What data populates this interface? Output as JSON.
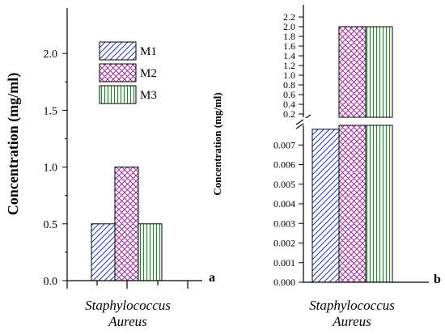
{
  "chart_data": [
    {
      "type": "bar",
      "panel_label": "a",
      "ylabel": "Concentration (mg/ml)",
      "category": [
        "Staphylococcus",
        "Aureus"
      ],
      "ylim": [
        0,
        2.4
      ],
      "yticks": [
        "0.0",
        "0.5",
        "1.0",
        "1.5",
        "2.0"
      ],
      "series": [
        {
          "name": "M1",
          "value": 0.5,
          "color": "#1f35c6",
          "pattern": "diagonal"
        },
        {
          "name": "M2",
          "value": 1.0,
          "color": "#a0289e",
          "pattern": "crosshatch"
        },
        {
          "name": "M3",
          "value": 0.5,
          "color": "#1f8a25",
          "pattern": "vertical"
        }
      ],
      "legend_placement": "top-right",
      "grid": false
    },
    {
      "type": "bar",
      "panel_label": "b",
      "ylabel": "Concentration (mg/ml)",
      "category": [
        "Staphylococcus",
        "Aureus"
      ],
      "axis_break": true,
      "ylim_lower": [
        0,
        0.008
      ],
      "ylim_upper": [
        0.2,
        2.2
      ],
      "yticks_lower": [
        "0.000",
        "0.001",
        "0.002",
        "0.003",
        "0.004",
        "0.005",
        "0.006",
        "0.007"
      ],
      "yticks_upper": [
        "0.2",
        "0.4",
        "0.6",
        "0.8",
        "1.0",
        "1.2",
        "1.4",
        "1.6",
        "1.8",
        "2.0",
        "2.2"
      ],
      "series": [
        {
          "name": "M1",
          "value": 0.0078,
          "color": "#1f35c6",
          "pattern": "diagonal"
        },
        {
          "name": "M2",
          "value": 2.0,
          "color": "#a0289e",
          "pattern": "crosshatch"
        },
        {
          "name": "M3",
          "value": 2.0,
          "color": "#1f8a25",
          "pattern": "vertical"
        }
      ],
      "grid": false
    }
  ]
}
